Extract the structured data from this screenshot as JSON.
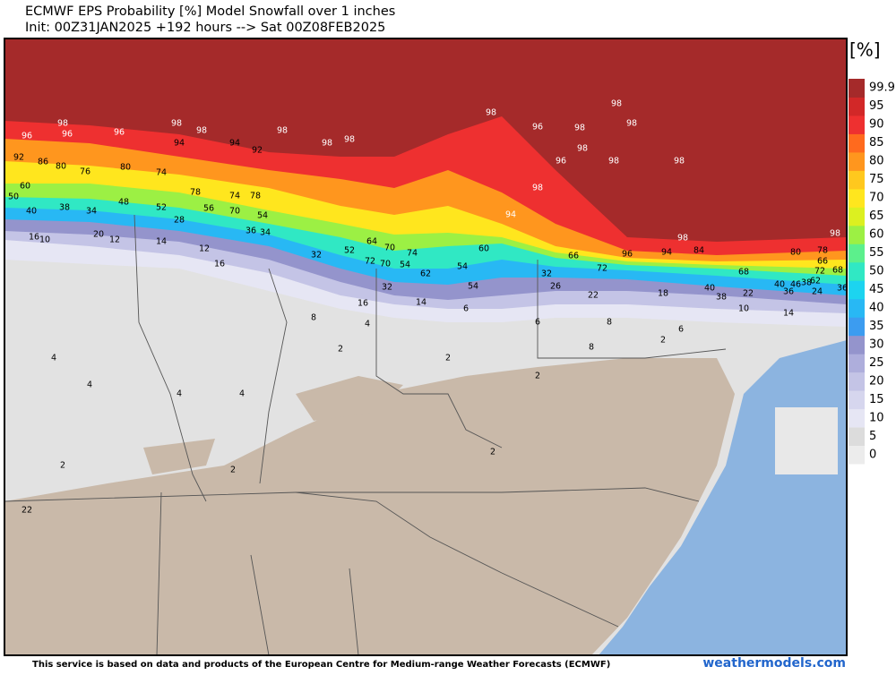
{
  "header": {
    "title": "ECMWF EPS Probability [%] Model Snowfall over 1 inches",
    "subtitle": "Init: 00Z31JAN2025 +192 hours --> Sat 00Z08FEB2025"
  },
  "legend": {
    "unit": "[%]",
    "levels": [
      0,
      5,
      10,
      15,
      20,
      25,
      30,
      35,
      40,
      45,
      50,
      55,
      60,
      65,
      70,
      75,
      80,
      85,
      90,
      95,
      99.9
    ],
    "colors": [
      "#ececec",
      "#dcdcdc",
      "#e6e6f4",
      "#d6d6ee",
      "#c4c4e6",
      "#aeaedc",
      "#9494cc",
      "#3c9cf0",
      "#28b8f4",
      "#1cd4f0",
      "#30e8c4",
      "#5cf08c",
      "#9cf044",
      "#dcf020",
      "#ffe61e",
      "#ffc81e",
      "#ff961e",
      "#ff6a1e",
      "#ee3030",
      "#d22828",
      "#a52a2a"
    ]
  },
  "map_labels": [
    98,
    96,
    96,
    96,
    98,
    98,
    98,
    98,
    98,
    98,
    96,
    98,
    98,
    98,
    98,
    98,
    98,
    98,
    98,
    94,
    96,
    98,
    94,
    94,
    92,
    92,
    86,
    80,
    76,
    80,
    74,
    78,
    74,
    78,
    60,
    50,
    40,
    38,
    34,
    48,
    52,
    28,
    56,
    70,
    54,
    36,
    34,
    16,
    10,
    20,
    12,
    14,
    12,
    16,
    32,
    52,
    64,
    70,
    74,
    72,
    70,
    54,
    62,
    54,
    60,
    54,
    32,
    14,
    16,
    8,
    4,
    6,
    6,
    8,
    8,
    6,
    10,
    14,
    4,
    4,
    4,
    4,
    2,
    2,
    2,
    2,
    2,
    22,
    2,
    2,
    80,
    78,
    66,
    72,
    68,
    68,
    46,
    40,
    36,
    38,
    62,
    24,
    36,
    66,
    72,
    96,
    94,
    84,
    32,
    26,
    22,
    18,
    40,
    38,
    22
  ],
  "footer": {
    "notice": "This service is based on data and products of the European Centre for Medium-range Weather Forecasts (ECMWF)",
    "credit": "weathermodels.com"
  }
}
